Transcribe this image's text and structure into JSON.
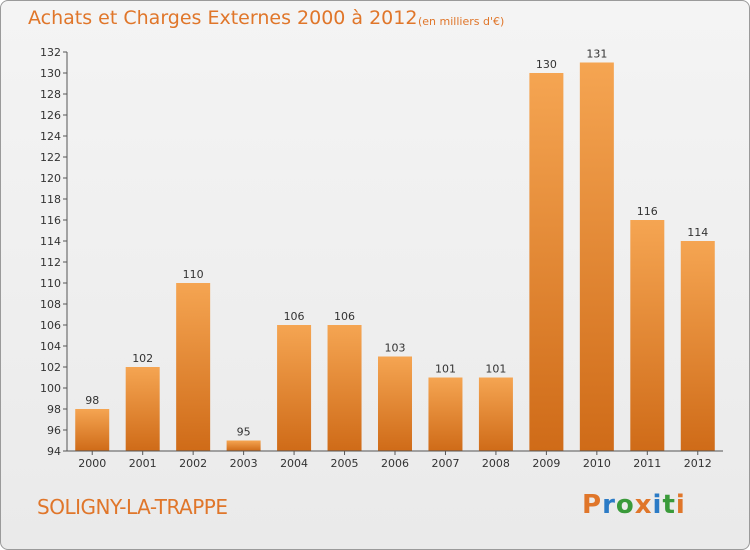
{
  "header": {
    "title": "Achats et Charges Externes 2000 à 2012",
    "unit": "(en milliers d'€)"
  },
  "footer": {
    "commune": "SOLIGNY-LA-TRAPPE",
    "logo_text": "Proxiti"
  },
  "colors": {
    "title": "#e0762a",
    "bar_top": "#f5a552",
    "bar_bottom": "#cf6b18",
    "logo_letters": [
      "#e0762a",
      "#2b7bc6",
      "#3a9a3a",
      "#e0762a",
      "#2b7bc6",
      "#3a9a3a",
      "#e0762a"
    ]
  },
  "chart_data": {
    "type": "bar",
    "title": "Achats et Charges Externes 2000 à 2012",
    "subtitle": "(en milliers d'€)",
    "xlabel": "",
    "ylabel": "",
    "categories": [
      "2000",
      "2001",
      "2002",
      "2003",
      "2004",
      "2005",
      "2006",
      "2007",
      "2008",
      "2009",
      "2010",
      "2011",
      "2012"
    ],
    "values": [
      98,
      102,
      110,
      95,
      106,
      106,
      103,
      101,
      101,
      130,
      131,
      116,
      114
    ],
    "ylim": [
      94,
      132
    ],
    "yticks": [
      94,
      96,
      98,
      100,
      102,
      104,
      106,
      108,
      110,
      112,
      114,
      116,
      118,
      120,
      122,
      124,
      126,
      128,
      130,
      132
    ],
    "grid": false,
    "legend": "none"
  }
}
